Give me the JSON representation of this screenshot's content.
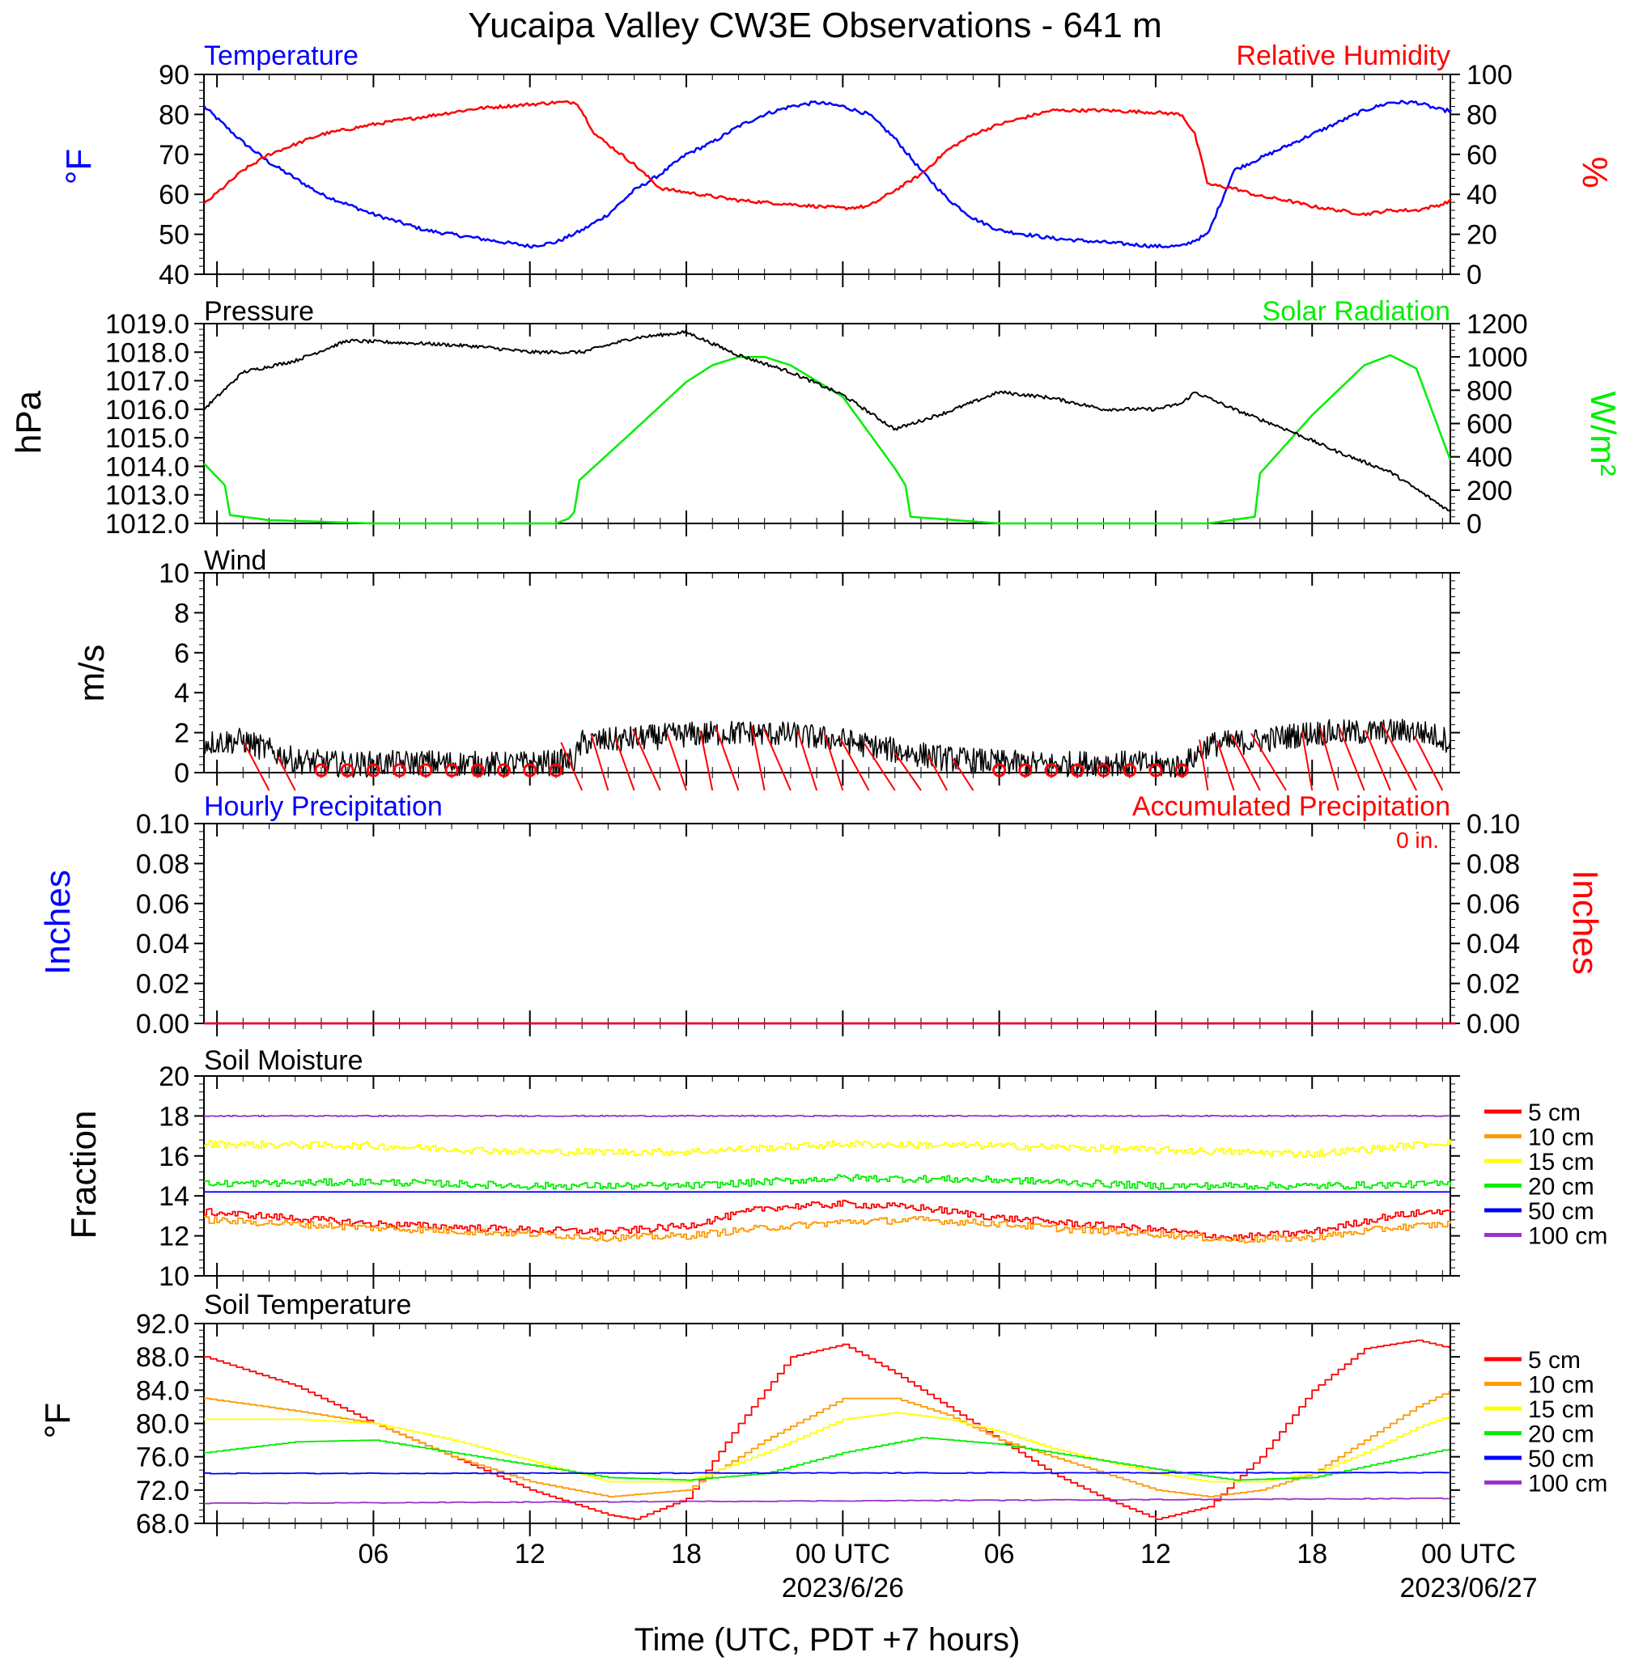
{
  "title": "Yucaipa Valley CW3E Observations - 641 m",
  "colors": {
    "blue": "#0000ff",
    "red": "#ff0000",
    "green": "#00ee00",
    "black": "#000000",
    "orange": "#ff9900",
    "yellow": "#ffff00",
    "purple": "#9933cc"
  },
  "time_axis": {
    "range_hours": [
      -18.5,
      29.3
    ],
    "ticks": [
      {
        "h": -12,
        "label": "06",
        "date": ""
      },
      {
        "h": -6,
        "label": "12",
        "date": ""
      },
      {
        "h": 0,
        "label": "18",
        "date": ""
      },
      {
        "h": 6,
        "label": "00 UTC",
        "date": "2023/6/26"
      },
      {
        "h": 12,
        "label": "06",
        "date": ""
      },
      {
        "h": 18,
        "label": "12",
        "date": ""
      },
      {
        "h": 24,
        "label": "18",
        "date": ""
      },
      {
        "h": 30,
        "label": "00 UTC",
        "date": "2023/06/27"
      }
    ],
    "xlabel": "Time (UTC, PDT +7 hours)"
  },
  "panels": {
    "temp_rh": {
      "left_title": "Temperature",
      "right_title": "Relative Humidity",
      "left_unit": "°F",
      "right_unit": "%",
      "left_ylim": [
        40,
        90
      ],
      "right_ylim": [
        0,
        100
      ],
      "left_ticks": [
        "90",
        "80",
        "70",
        "60",
        "50",
        "40"
      ],
      "right_ticks": [
        "100",
        "80",
        "60",
        "40",
        "20",
        "0"
      ]
    },
    "pressure_solar": {
      "left_title": "Pressure",
      "right_title": "Solar Radiation",
      "left_unit": "hPa",
      "right_unit": "W/m²",
      "left_ylim": [
        1012,
        1019
      ],
      "right_ylim": [
        0,
        1200
      ],
      "left_ticks": [
        "1019.0",
        "1018.0",
        "1017.0",
        "1016.0",
        "1015.0",
        "1014.0",
        "1013.0",
        "1012.0"
      ],
      "right_ticks": [
        "1200",
        "1000",
        "800",
        "600",
        "400",
        "200",
        "0"
      ]
    },
    "wind": {
      "left_title": "Wind",
      "left_unit": "m/s",
      "left_ylim": [
        0,
        10
      ],
      "left_ticks": [
        "10",
        "8",
        "6",
        "4",
        "2",
        "0"
      ]
    },
    "precip": {
      "left_title": "Hourly Precipitation",
      "right_title": "Accumulated Precipitation",
      "accum_label": "0 in.",
      "left_unit": "Inches",
      "right_unit": "Inches",
      "left_ylim": [
        0,
        0.1
      ],
      "right_ylim": [
        0,
        0.1
      ],
      "left_ticks": [
        "0.10",
        "0.08",
        "0.06",
        "0.04",
        "0.02",
        "0.00"
      ],
      "right_ticks": [
        "0.10",
        "0.08",
        "0.06",
        "0.04",
        "0.02",
        "0.00"
      ]
    },
    "soil_moisture": {
      "left_title": "Soil Moisture",
      "left_unit": "Fraction",
      "left_ylim": [
        10,
        20
      ],
      "left_ticks": [
        "20",
        "18",
        "16",
        "14",
        "12",
        "10"
      ],
      "legend": [
        "5 cm",
        "10 cm",
        "15 cm",
        "20 cm",
        "50 cm",
        "100 cm"
      ]
    },
    "soil_temp": {
      "left_title": "Soil Temperature",
      "left_unit": "°F",
      "left_ylim": [
        68,
        92
      ],
      "left_ticks": [
        "92.0",
        "88.0",
        "84.0",
        "80.0",
        "76.0",
        "72.0",
        "68.0"
      ],
      "legend": [
        "5 cm",
        "10 cm",
        "15 cm",
        "20 cm",
        "50 cm",
        "100 cm"
      ]
    }
  },
  "chart_data": [
    {
      "type": "line",
      "title": "Temperature",
      "ylabel": "°F",
      "ylim": [
        40,
        90
      ],
      "x_unit": "hours relative to 2023-06-25 18 UTC",
      "series": [
        {
          "name": "Temperature",
          "x": [
            -18.5,
            -17,
            -16,
            -14,
            -12,
            -10,
            -8,
            -6,
            -5,
            -4,
            -3,
            -2,
            -1,
            0,
            1,
            2,
            3,
            4,
            5,
            6,
            7,
            8,
            9,
            10,
            11,
            12,
            14,
            16,
            18,
            19,
            20,
            20.5,
            21,
            22,
            23,
            24,
            25,
            26,
            27,
            28,
            29,
            29.3
          ],
          "values": [
            82,
            73,
            68,
            60,
            55,
            51,
            49,
            47,
            48,
            51,
            55,
            61,
            65,
            70,
            73,
            77,
            80,
            82,
            83,
            82,
            80,
            74,
            66,
            59,
            54,
            51,
            49,
            48,
            47,
            47,
            50,
            58,
            66,
            69,
            72,
            75,
            78,
            81,
            83,
            83,
            81,
            81
          ]
        }
      ]
    },
    {
      "type": "line",
      "title": "Relative Humidity",
      "ylabel": "%",
      "ylim": [
        0,
        100
      ],
      "series": [
        {
          "name": "Relative Humidity",
          "x": [
            -18.5,
            -17,
            -16,
            -14,
            -12,
            -10,
            -8,
            -5,
            -4.2,
            -3.5,
            -2,
            -1,
            0,
            2,
            4,
            6,
            7,
            8,
            9,
            10,
            11,
            12,
            14,
            16,
            18,
            19,
            19.5,
            20,
            21,
            22,
            23,
            24,
            25,
            26,
            27,
            28,
            29,
            29.3
          ],
          "values": [
            35,
            52,
            60,
            70,
            75,
            79,
            83,
            86,
            86,
            70,
            55,
            43,
            41,
            37,
            35,
            33,
            34,
            42,
            50,
            62,
            70,
            75,
            82,
            82,
            81,
            80,
            70,
            45,
            43,
            39,
            37,
            34,
            32,
            30,
            32,
            32,
            35,
            37
          ]
        }
      ]
    },
    {
      "type": "line",
      "title": "Pressure",
      "ylabel": "hPa",
      "ylim": [
        1012,
        1019
      ],
      "series": [
        {
          "name": "Pressure",
          "x": [
            -18.5,
            -17,
            -15,
            -13,
            -10,
            -8,
            -6,
            -4,
            -2,
            0,
            2,
            4,
            6,
            8,
            10,
            12,
            14,
            16,
            18,
            19,
            19.5,
            21,
            23,
            25,
            27,
            29,
            29.3
          ],
          "values": [
            1016,
            1017.3,
            1017.7,
            1018.4,
            1018.3,
            1018.2,
            1018.0,
            1018.0,
            1018.5,
            1018.7,
            1017.9,
            1017.3,
            1016.5,
            1015.3,
            1015.9,
            1016.6,
            1016.4,
            1016.0,
            1016.0,
            1016.2,
            1016.6,
            1016.0,
            1015.3,
            1014.5,
            1013.8,
            1012.6,
            1012.4
          ]
        }
      ]
    },
    {
      "type": "line",
      "title": "Solar Radiation",
      "ylabel": "W/m²",
      "ylim": [
        0,
        1200
      ],
      "series": [
        {
          "name": "Solar Radiation",
          "x": [
            -18.5,
            -17.7,
            -17.5,
            -16,
            -12,
            -6,
            -5,
            -4.5,
            -4.3,
            -4.1,
            -2,
            0,
            1,
            2,
            3,
            4,
            6,
            8,
            8.4,
            8.6,
            12,
            18,
            20,
            21.8,
            22,
            24,
            26,
            27,
            28,
            29.3
          ],
          "values": [
            360,
            230,
            50,
            20,
            0,
            0,
            0,
            30,
            70,
            260,
            560,
            850,
            950,
            1000,
            1000,
            950,
            760,
            330,
            230,
            40,
            0,
            0,
            0,
            40,
            300,
            650,
            950,
            1010,
            930,
            380
          ]
        }
      ]
    },
    {
      "type": "line",
      "title": "Wind",
      "ylabel": "m/s",
      "ylim": [
        0,
        10
      ],
      "series": [
        {
          "name": "Wind",
          "x": [
            -18.5,
            -17,
            -15,
            -13,
            -10,
            -7,
            -5,
            -4.3,
            -4,
            -2,
            0,
            2,
            4,
            6,
            8,
            10,
            12,
            14,
            16,
            18,
            19,
            19.5,
            20,
            22,
            24,
            26,
            28,
            29.3
          ],
          "values": [
            1.5,
            1.6,
            0.6,
            0.4,
            0.5,
            0.4,
            0.5,
            0.6,
            1.5,
            1.7,
            1.9,
            2.0,
            1.9,
            1.6,
            1.1,
            0.7,
            0.5,
            0.4,
            0.5,
            0.4,
            0.3,
            0.8,
            1.4,
            1.6,
            2.0,
            2.0,
            2.1,
            1.6
          ]
        }
      ]
    },
    {
      "type": "line",
      "title": "Hourly Precipitation",
      "ylabel": "Inches",
      "ylim": [
        0,
        0.1
      ],
      "series": [
        {
          "name": "Hourly Precipitation",
          "x": [
            -18.5,
            29.3
          ],
          "values": [
            0,
            0
          ]
        },
        {
          "name": "Accumulated Precipitation",
          "x": [
            -18.5,
            29.3
          ],
          "values": [
            0,
            0
          ]
        }
      ]
    },
    {
      "type": "line",
      "title": "Soil Moisture",
      "ylabel": "Fraction",
      "ylim": [
        10,
        20
      ],
      "series": [
        {
          "name": "5 cm",
          "x": [
            -18.5,
            -12,
            -6,
            -3,
            0,
            3,
            6,
            9,
            12,
            15,
            18,
            21,
            24,
            27,
            29.3
          ],
          "values": [
            13.2,
            12.6,
            12.3,
            12.2,
            12.5,
            13.4,
            13.6,
            13.4,
            12.9,
            12.6,
            12.3,
            11.9,
            12.2,
            13.0,
            13.3
          ]
        },
        {
          "name": "10 cm",
          "x": [
            -18.5,
            -12,
            -6,
            -3,
            0,
            3,
            6,
            9,
            12,
            15,
            18,
            21,
            24,
            27,
            29.3
          ],
          "values": [
            12.8,
            12.4,
            12.1,
            11.9,
            12.0,
            12.4,
            12.7,
            12.8,
            12.6,
            12.3,
            12.1,
            11.8,
            11.9,
            12.4,
            12.6
          ]
        },
        {
          "name": "15 cm",
          "x": [
            -18.5,
            -12,
            -6,
            0,
            6,
            12,
            18,
            24,
            29.3
          ],
          "values": [
            16.6,
            16.5,
            16.2,
            16.2,
            16.6,
            16.5,
            16.3,
            16.1,
            16.7
          ]
        },
        {
          "name": "20 cm",
          "x": [
            -18.5,
            -12,
            -6,
            0,
            6,
            12,
            18,
            24,
            29.3
          ],
          "values": [
            14.6,
            14.7,
            14.5,
            14.5,
            14.9,
            14.8,
            14.5,
            14.5,
            14.6
          ]
        },
        {
          "name": "50 cm",
          "x": [
            -18.5,
            29.3
          ],
          "values": [
            14.2,
            14.2
          ]
        },
        {
          "name": "100 cm",
          "x": [
            -18.5,
            29.3
          ],
          "values": [
            18.0,
            18.0
          ]
        }
      ]
    },
    {
      "type": "line",
      "title": "Soil Temperature",
      "ylabel": "°F",
      "ylim": [
        68,
        92
      ],
      "series": [
        {
          "name": "5 cm",
          "x": [
            -18.5,
            -15,
            -12,
            -9,
            -6,
            -3,
            -2,
            0,
            2,
            4,
            6,
            8,
            10,
            12,
            14,
            16,
            18,
            20,
            22,
            24,
            26,
            28,
            29.3
          ],
          "values": [
            88,
            84.5,
            80,
            76,
            72,
            69,
            68.5,
            71,
            80,
            88,
            89.5,
            86,
            82,
            78,
            74,
            71,
            68.5,
            70,
            76,
            84,
            89,
            90,
            89
          ]
        },
        {
          "name": "10 cm",
          "x": [
            -18.5,
            -15,
            -12,
            -9,
            -6,
            -3,
            0,
            3,
            6,
            8,
            10,
            12,
            14,
            18,
            20,
            22,
            24,
            26,
            28,
            29.3
          ],
          "values": [
            83,
            81.5,
            80,
            76,
            73,
            71.2,
            72,
            78,
            83,
            83,
            81,
            78,
            76,
            72,
            71.2,
            72,
            74,
            78,
            82,
            84
          ]
        },
        {
          "name": "15 cm",
          "x": [
            -18.5,
            -15,
            -12,
            -9,
            -6,
            -3,
            0,
            3,
            6,
            8,
            10,
            12,
            14,
            18,
            20,
            22,
            24,
            26,
            28,
            29.3
          ],
          "values": [
            80.5,
            80.5,
            80,
            78,
            75.5,
            73,
            73,
            76.5,
            80.5,
            81.3,
            80.5,
            79,
            77,
            74,
            73,
            73,
            74,
            76.5,
            79.5,
            81
          ]
        },
        {
          "name": "20 cm",
          "x": [
            -18.5,
            -15,
            -12,
            -9,
            -6,
            -3,
            0,
            3,
            6,
            9,
            12,
            15,
            18,
            21,
            24,
            27,
            29.3
          ],
          "values": [
            76.5,
            77.8,
            78,
            76.5,
            75,
            73.5,
            73.2,
            74,
            76.5,
            78.3,
            77.5,
            76,
            74.5,
            73.2,
            73.5,
            75.5,
            77
          ]
        },
        {
          "name": "50 cm",
          "x": [
            -18.5,
            29.3
          ],
          "values": [
            74,
            74.1
          ]
        },
        {
          "name": "100 cm",
          "x": [
            -18.5,
            29.3
          ],
          "values": [
            70.4,
            71
          ]
        }
      ]
    }
  ]
}
